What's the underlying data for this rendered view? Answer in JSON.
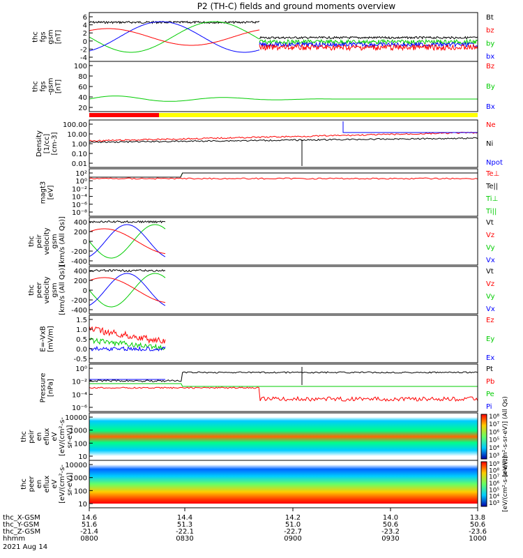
{
  "title": "P2 (TH-C) fields and ground moments overview",
  "chart_data": {
    "type": "line",
    "title": "P2 (TH-C) fields and ground moments overview",
    "date": "2021 Aug 14",
    "xaxis": {
      "rows": [
        {
          "label": "thc_X-GSM",
          "values": [
            "14.6",
            "14.4",
            "14.2",
            "14.0",
            "13.8"
          ]
        },
        {
          "label": "thc_Y-GSM",
          "values": [
            "51.6",
            "51.3",
            "51.0",
            "50.6",
            "50.6"
          ]
        },
        {
          "label": "thc_Z-GSM",
          "values": [
            "-21.4",
            "-22.1",
            "-22.7",
            "-23.2",
            "-23.6"
          ]
        },
        {
          "label": "hhmm",
          "values": [
            "0800",
            "0830",
            "0900",
            "0930",
            "1000"
          ]
        }
      ]
    },
    "panels": [
      {
        "ylabel": [
          "thc",
          "fgs",
          "gsm",
          "[nT]"
        ],
        "ticks": [
          "6",
          "4",
          "2",
          "0",
          "-2",
          "-4"
        ],
        "legend": [
          {
            "name": "Bt",
            "color": "#000000"
          },
          {
            "name": "bz",
            "color": "#ff0000"
          },
          {
            "name": "by",
            "color": "#00cc00"
          },
          {
            "name": "bx",
            "color": "#0000ff"
          }
        ]
      },
      {
        "ylabel": [
          "thc",
          "fgs",
          "-gsm",
          "[nT]"
        ],
        "ticks": [
          "100",
          "80",
          "60",
          "40",
          "20"
        ],
        "legend": [
          {
            "name": "Bz",
            "color": "#ff0000"
          },
          {
            "name": "By",
            "color": "#00cc00"
          },
          {
            "name": "Bx",
            "color": "#0000ff"
          }
        ]
      },
      {
        "ylabel": [
          "Density",
          "[1/cc]",
          "[cm-3]"
        ],
        "ticks": [
          "100.00",
          "10.00",
          "1.00",
          "0.10",
          "0.01"
        ],
        "legend": [
          {
            "name": "Ne",
            "color": "#ff0000"
          },
          {
            "name": "Ni",
            "color": "#000000"
          },
          {
            "name": "Npot",
            "color": "#0000ff"
          }
        ]
      },
      {
        "ylabel": [
          "magt3",
          "[eV]"
        ],
        "ticks": [
          "10²",
          "10⁰",
          "10⁻²",
          "10⁻⁴",
          "10⁻⁶",
          "10⁻⁸"
        ],
        "legend": [
          {
            "name": "Te⊥",
            "color": "#ff0000"
          },
          {
            "name": "Te||",
            "color": "#000000"
          },
          {
            "name": "Ti⊥",
            "color": "#00cc00"
          },
          {
            "name": "Ti||",
            "color": "#00cc00"
          }
        ]
      },
      {
        "ylabel": [
          "thc",
          "peir",
          "velocity",
          "gsm",
          "[km/s (All Qs)]"
        ],
        "ticks": [
          "400",
          "200",
          "0",
          "-200",
          "-400"
        ],
        "legend": [
          {
            "name": "Vt",
            "color": "#000000"
          },
          {
            "name": "Vz",
            "color": "#ff0000"
          },
          {
            "name": "Vy",
            "color": "#00cc00"
          },
          {
            "name": "Vx",
            "color": "#0000ff"
          }
        ]
      },
      {
        "ylabel": [
          "thc",
          "peer",
          "velocity",
          "gsm",
          "[km/s (All Qs)]"
        ],
        "ticks": [
          "400",
          "200",
          "0",
          "-200",
          "-400"
        ],
        "legend": [
          {
            "name": "Vt",
            "color": "#000000"
          },
          {
            "name": "Vz",
            "color": "#ff0000"
          },
          {
            "name": "Vy",
            "color": "#00cc00"
          },
          {
            "name": "Vx",
            "color": "#0000ff"
          }
        ]
      },
      {
        "ylabel": [
          "E=-VxB",
          "[mV/m]"
        ],
        "ticks": [
          "1.5",
          "1.0",
          "0.5",
          "0.0",
          "-0.5"
        ],
        "legend": [
          {
            "name": "Ez",
            "color": "#ff0000"
          },
          {
            "name": "Ey",
            "color": "#00cc00"
          },
          {
            "name": "Ex",
            "color": "#0000ff"
          }
        ]
      },
      {
        "ylabel": [
          "Pressure",
          "[nPa]"
        ],
        "ticks": [
          "10⁰",
          "10⁻²",
          "10⁻⁴",
          "10⁻⁶"
        ],
        "legend": [
          {
            "name": "Pt",
            "color": "#000000"
          },
          {
            "name": "Pb",
            "color": "#ff0000"
          },
          {
            "name": "Pe",
            "color": "#00cc00"
          },
          {
            "name": "Pi",
            "color": "#0000ff"
          }
        ]
      },
      {
        "ylabel": [
          "thc",
          "peir",
          "en",
          "eflux",
          "eV",
          "[eV/(cm²-s-",
          "sr-eV)]"
        ],
        "ticks": [
          "10000",
          "1000",
          "100",
          "10"
        ],
        "colorbar": {
          "ticks": [
            "10⁸",
            "10⁷",
            "10⁶",
            "10⁵",
            "10⁴",
            "10³"
          ],
          "label": "[eV/(cm²-s-sr-eV)] (All Qs)"
        }
      },
      {
        "ylabel": [
          "thc",
          "peer",
          "en",
          "eflux",
          "eV",
          "[eV/(cm²-s-",
          "sr-eV)]"
        ],
        "ticks": [
          "10000",
          "1000",
          "100",
          "10"
        ],
        "colorbar": {
          "ticks": [
            "10⁹",
            "10⁸",
            "10⁷",
            "10⁶",
            "10⁵",
            "10⁴",
            "10³"
          ],
          "label": "[eV/(cm²-s-sr-eV)]"
        }
      }
    ],
    "colors": {
      "red": "#ff0000",
      "green": "#00cc00",
      "blue": "#0000ff",
      "black": "#000000",
      "yellow": "#ffff00"
    }
  }
}
